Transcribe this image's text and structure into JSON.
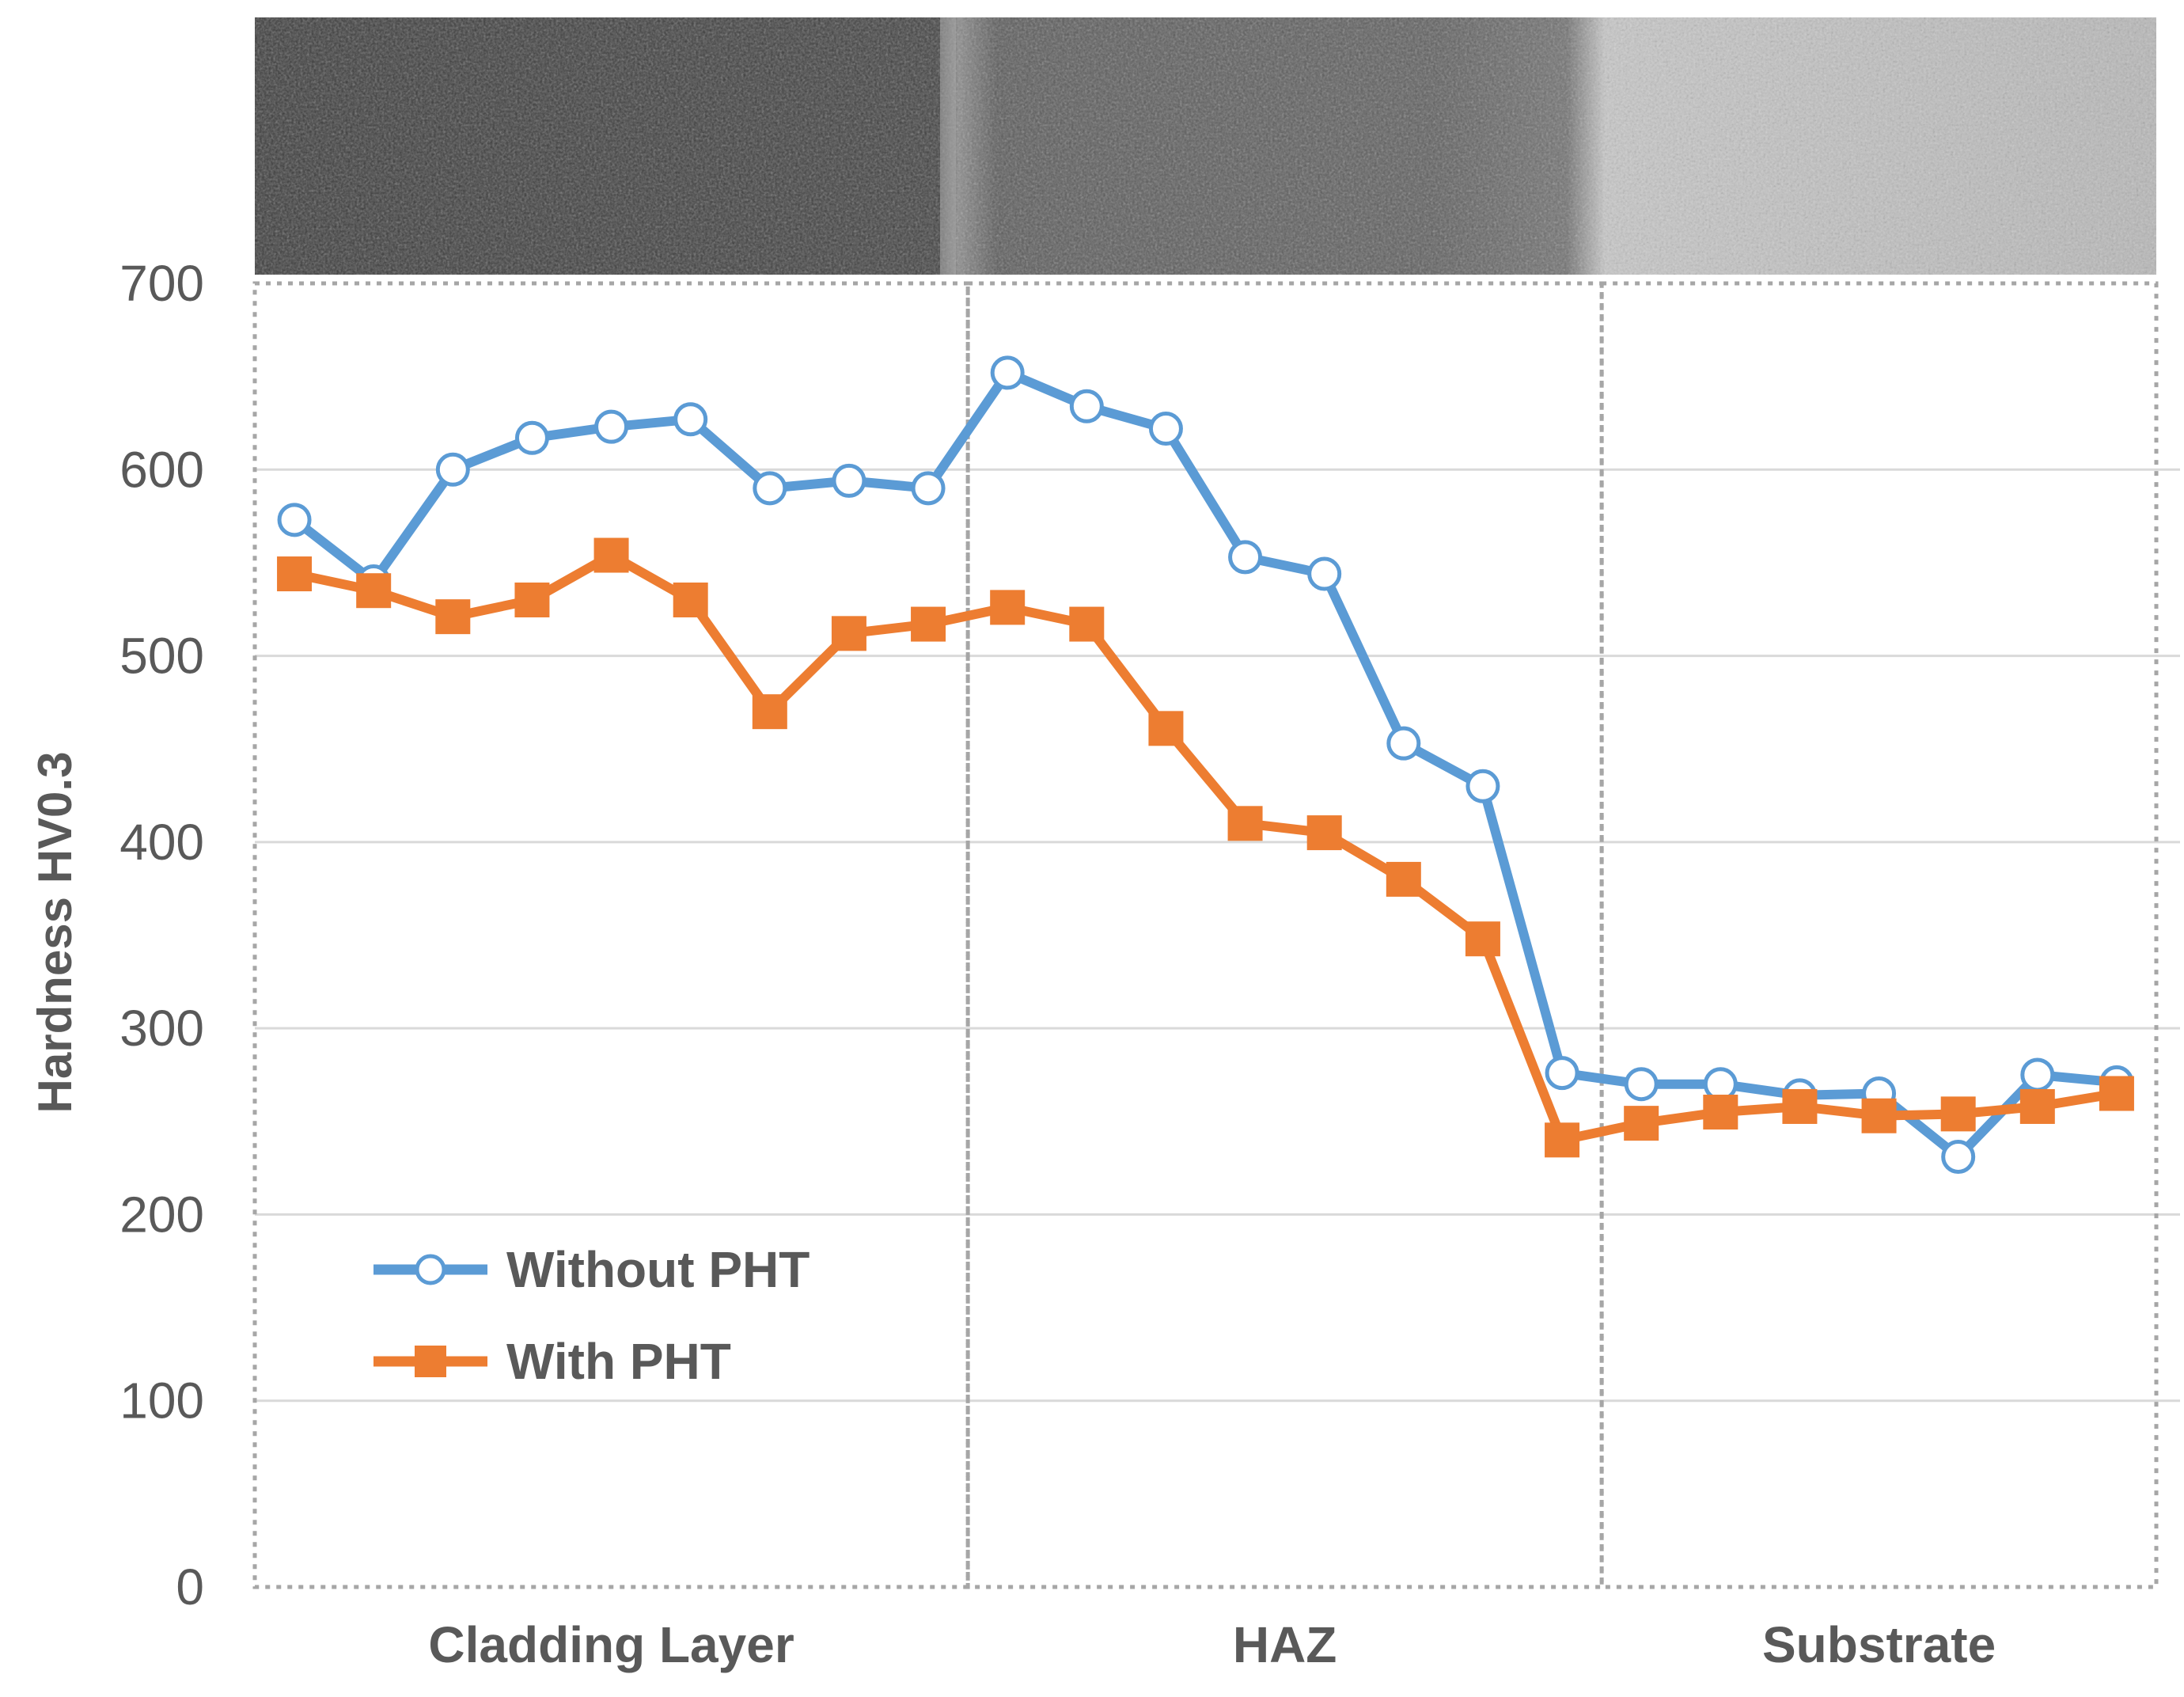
{
  "chart_data": {
    "type": "line",
    "title": "",
    "xlabel": "",
    "ylabel": "Hardness HV0.3",
    "ylim": [
      0,
      700
    ],
    "yticks": [
      0,
      100,
      200,
      300,
      400,
      500,
      600,
      700
    ],
    "x_range": [
      0.5,
      24.5
    ],
    "grid": "horizontal",
    "legend_position": "lower-left",
    "micrograph_strip": "grayscale cross-section micrograph above the plot",
    "regions": [
      {
        "label": "Cladding Layer",
        "x_start": 0.5,
        "x_end": 9.5
      },
      {
        "label": "HAZ",
        "x_start": 9.5,
        "x_end": 17.5
      },
      {
        "label": "Substrate",
        "x_start": 17.5,
        "x_end": 24.5
      }
    ],
    "x": [
      1,
      2,
      3,
      4,
      5,
      6,
      7,
      8,
      9,
      10,
      11,
      12,
      13,
      14,
      15,
      16,
      17,
      18,
      19,
      20,
      21,
      22,
      23,
      24
    ],
    "series": [
      {
        "name": "Without PHT",
        "color": "#5b9bd5",
        "marker": "open-circle",
        "values": [
          573,
          540,
          600,
          617,
          623,
          627,
          590,
          594,
          590,
          652,
          634,
          622,
          553,
          544,
          453,
          430,
          276,
          270,
          270,
          264,
          265,
          231,
          275,
          271
        ]
      },
      {
        "name": "With PHT",
        "color": "#ed7d31",
        "marker": "filled-square",
        "values": [
          544,
          535,
          521,
          530,
          554,
          530,
          470,
          512,
          517,
          526,
          517,
          461,
          410,
          405,
          380,
          348,
          240,
          249,
          255,
          258,
          253,
          254,
          258,
          265
        ]
      }
    ]
  }
}
